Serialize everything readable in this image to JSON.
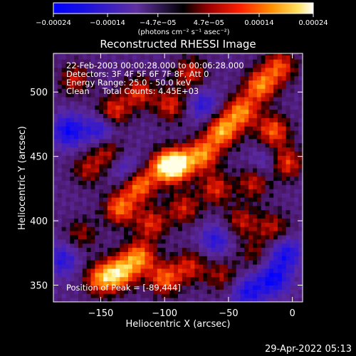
{
  "chart_data": {
    "type": "heatmap",
    "title": "Reconstructed RHESSI Image",
    "xlabel": "Heliocentric X (arcsec)",
    "ylabel": "Heliocentric Y (arcsec)",
    "xlim": [
      -187,
      8
    ],
    "ylim": [
      337,
      530
    ],
    "xticks": [
      -150,
      -100,
      -50,
      0
    ],
    "xtick_labels": [
      "−150",
      "−100",
      "−50",
      "0"
    ],
    "yticks": [
      350,
      400,
      450,
      500
    ],
    "ytick_labels": [
      "350",
      "400",
      "450",
      "500"
    ],
    "grid": false,
    "colorbar": {
      "range": [
        -0.00024,
        0.00024
      ],
      "ticks": [
        -0.00024,
        -0.00014,
        -4.7e-05,
        4.7e-05,
        0.00014,
        0.00024
      ],
      "tick_labels": [
        "−0.00024",
        "−0.00014",
        "−4.7e−05",
        "4.7e−05",
        "0.00014",
        "0.00024"
      ],
      "units": "(photons cm⁻² s⁻¹ asec⁻²)",
      "placement": "top"
    },
    "annotations": [
      "22-Feb-2003 00:00:28.000 to 00:06:28.000",
      "Detectors: 3F 4F 5F 6F 7F 8F, Att 0",
      "Energy Range: 25.0 - 50.0 keV",
      "Clean     Total Counts: 4.45E+03"
    ],
    "peak_label": "Position of Peak = [-89,444]",
    "peak_position": [
      -89,
      444
    ],
    "bright_regions": [
      {
        "x": -135,
        "y": 360,
        "level": 0.95
      },
      {
        "x": -120,
        "y": 372,
        "level": 0.85
      },
      {
        "x": -150,
        "y": 355,
        "level": 0.8
      },
      {
        "x": -100,
        "y": 355,
        "level": 0.75
      },
      {
        "x": -80,
        "y": 365,
        "level": 0.55
      },
      {
        "x": -55,
        "y": 358,
        "level": 0.45
      },
      {
        "x": -135,
        "y": 410,
        "level": 0.8
      },
      {
        "x": -120,
        "y": 428,
        "level": 0.85
      },
      {
        "x": -100,
        "y": 442,
        "level": 0.9
      },
      {
        "x": -89,
        "y": 444,
        "level": 1.0
      },
      {
        "x": -70,
        "y": 452,
        "level": 0.85
      },
      {
        "x": -55,
        "y": 470,
        "level": 0.95
      },
      {
        "x": -40,
        "y": 485,
        "level": 0.85
      },
      {
        "x": -25,
        "y": 505,
        "level": 0.85
      },
      {
        "x": -10,
        "y": 520,
        "level": 0.7
      },
      {
        "x": -15,
        "y": 470,
        "level": 0.75
      },
      {
        "x": -5,
        "y": 445,
        "level": 0.7
      },
      {
        "x": -140,
        "y": 485,
        "level": 0.65
      },
      {
        "x": -120,
        "y": 500,
        "level": 0.6
      },
      {
        "x": -95,
        "y": 490,
        "level": 0.6
      },
      {
        "x": -80,
        "y": 515,
        "level": 0.55
      },
      {
        "x": -60,
        "y": 425,
        "level": 0.6
      },
      {
        "x": -30,
        "y": 430,
        "level": 0.55
      },
      {
        "x": -40,
        "y": 400,
        "level": 0.5
      },
      {
        "x": -15,
        "y": 395,
        "level": 0.5
      },
      {
        "x": -160,
        "y": 440,
        "level": 0.45
      },
      {
        "x": -165,
        "y": 390,
        "level": 0.4
      },
      {
        "x": -110,
        "y": 398,
        "level": 0.6
      },
      {
        "x": -85,
        "y": 410,
        "level": 0.55
      },
      {
        "x": -30,
        "y": 375,
        "level": 0.35
      },
      {
        "x": -170,
        "y": 510,
        "level": 0.5
      },
      {
        "x": -145,
        "y": 455,
        "level": 0.55
      }
    ],
    "dim_regions": [
      {
        "x": -175,
        "y": 470,
        "level": -0.7
      },
      {
        "x": -150,
        "y": 470,
        "level": -0.6
      },
      {
        "x": -15,
        "y": 355,
        "level": -0.7
      },
      {
        "x": -35,
        "y": 345,
        "level": -0.6
      },
      {
        "x": -180,
        "y": 370,
        "level": -0.5
      },
      {
        "x": -60,
        "y": 385,
        "level": -0.5
      },
      {
        "x": -5,
        "y": 375,
        "level": -0.6
      },
      {
        "x": -130,
        "y": 440,
        "level": -0.4
      },
      {
        "x": -70,
        "y": 490,
        "level": -0.5
      },
      {
        "x": -20,
        "y": 445,
        "level": -0.35
      }
    ]
  },
  "footer": {
    "timestamp": "29-Apr-2022 05:13"
  }
}
